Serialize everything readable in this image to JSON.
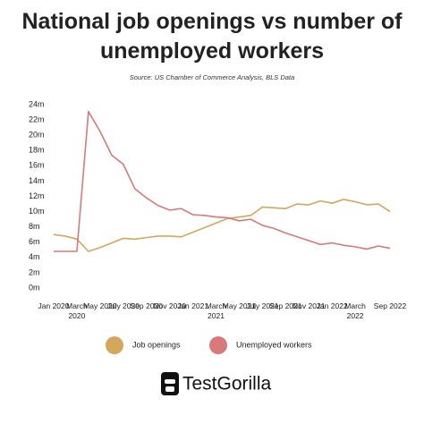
{
  "chart_data": {
    "type": "line",
    "title": "National job openings vs number of unemployed workers",
    "subtitle": "Source: US Chamber of Commerce Analysis, BLS Data",
    "categories": [
      "Jan 2020",
      null,
      "March 2020",
      null,
      "May 2020",
      null,
      "July 2020",
      null,
      "Sep 2020",
      null,
      "Nov 2020",
      null,
      "Jan 2021",
      null,
      "March 2021",
      null,
      "May 2021",
      null,
      "July 2021",
      null,
      "Sep 2021",
      null,
      "Nov 2021",
      null,
      "Jan 2022",
      null,
      "March 2022",
      null,
      null,
      "Sep 2022"
    ],
    "series": [
      {
        "name": "Job openings",
        "color": "#d4a75c",
        "values": [
          7.0,
          6.8,
          6.4,
          4.8,
          5.3,
          5.9,
          6.5,
          6.4,
          6.6,
          6.8,
          6.8,
          6.7,
          7.3,
          7.9,
          8.5,
          9.1,
          9.3,
          9.5,
          10.6,
          10.5,
          10.4,
          11.0,
          10.9,
          11.4,
          11.1,
          11.6,
          11.3,
          10.9,
          11.0,
          10.0
        ]
      },
      {
        "name": "Unemployed workers",
        "color": "#d67a7b",
        "values": [
          4.8,
          4.8,
          4.8,
          23.1,
          20.5,
          17.4,
          16.2,
          13.0,
          11.8,
          10.8,
          10.2,
          10.4,
          9.6,
          9.5,
          9.3,
          9.2,
          8.8,
          9.0,
          8.2,
          7.8,
          7.2,
          6.7,
          6.2,
          5.7,
          5.9,
          5.6,
          5.4,
          5.1,
          5.5,
          5.2
        ]
      }
    ],
    "ylim": [
      0,
      24
    ],
    "yticks": [
      {
        "value": 0,
        "label": "0m"
      },
      {
        "value": 2,
        "label": "2m"
      },
      {
        "value": 4,
        "label": "4m"
      },
      {
        "value": 6,
        "label": "6m"
      },
      {
        "value": 8,
        "label": "8m"
      },
      {
        "value": 10,
        "label": "10m"
      },
      {
        "value": 12,
        "label": "12m"
      },
      {
        "value": 14,
        "label": "14m"
      },
      {
        "value": 16,
        "label": "16m"
      },
      {
        "value": 18,
        "label": "18m"
      },
      {
        "value": 20,
        "label": "20m"
      },
      {
        "value": 22,
        "label": "22m"
      },
      {
        "value": 24,
        "label": "24m"
      }
    ],
    "grid": false,
    "legend": "bottom"
  },
  "logo": "TestGorilla"
}
